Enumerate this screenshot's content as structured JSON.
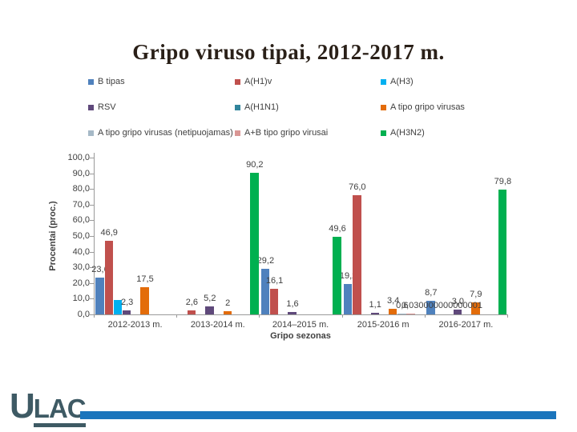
{
  "slide": {
    "title": "Gripo viruso tipai, 2012-2017 m."
  },
  "chart_data": {
    "type": "bar",
    "title": "Gripo viruso tipai, 2012-2017 m.",
    "xlabel": "Gripo sezonas",
    "ylabel": "Procentai (proc.)",
    "ylim": [
      0,
      100
    ],
    "ytick_step": 10,
    "yticks": [
      "0,0",
      "10,0",
      "20,0",
      "30,0",
      "40,0",
      "50,0",
      "60,0",
      "70,0",
      "80,0",
      "90,0",
      "100,0"
    ],
    "grid": false,
    "legend_position": "top",
    "categories": [
      "2012-2013 m.",
      "2013-2014 m.",
      "2014–2015 m.",
      "2015-2016 m",
      "2016-2017 m."
    ],
    "series": [
      {
        "name": "B tipas",
        "color": "#4F81BD",
        "values": [
          23.6,
          0,
          29.2,
          19.2,
          8.7
        ],
        "labels": [
          "23,6",
          null,
          "29,2",
          "19,2",
          "8,7"
        ]
      },
      {
        "name": "A(H1)v",
        "color": "#C0504D",
        "values": [
          46.9,
          2.6,
          16.1,
          76.0,
          0
        ],
        "labels": [
          "46,9",
          "2,6",
          "16,1",
          "76,0",
          null
        ]
      },
      {
        "name": "A(H3)",
        "color": "#00B0F0",
        "values": [
          9.2,
          0,
          0,
          0,
          0
        ],
        "labels": [
          null,
          null,
          null,
          null,
          null
        ]
      },
      {
        "name": "RSV",
        "color": "#5F497B",
        "values": [
          2.3,
          5.2,
          1.6,
          1.1,
          3.0
        ],
        "labels": [
          "2,3",
          "5,2",
          "1,6",
          "1,1",
          "3,0"
        ]
      },
      {
        "name": "A(H1N1)",
        "color": "#31859C",
        "values": [
          0,
          0,
          0,
          0,
          0
        ],
        "labels": [
          null,
          null,
          null,
          null,
          null
        ]
      },
      {
        "name": "A tipo gripo virusas",
        "color": "#E36C0A",
        "values": [
          17.5,
          2,
          0,
          3.4,
          7.9
        ],
        "labels": [
          "17,5",
          "2",
          null,
          "3,4",
          "7,9"
        ]
      },
      {
        "name": "A tipo gripo virusas (netipuojamas)",
        "color": "#A6B9C7",
        "values": [
          0,
          0,
          0,
          0.6,
          0
        ],
        "labels": [
          null,
          null,
          null,
          "0,6",
          null
        ]
      },
      {
        "name": "A+B tipo gripo virusai",
        "color": "#D99694",
        "values": [
          0,
          0,
          0,
          0.03,
          0
        ],
        "labels": [
          null,
          null,
          null,
          "0,030000000000001",
          null
        ]
      },
      {
        "name": "A(H3N2)",
        "color": "#00B050",
        "values": [
          0,
          90.2,
          49.6,
          0,
          79.8
        ],
        "labels": [
          null,
          "90,2",
          "49,6",
          null,
          "79,8"
        ]
      }
    ]
  },
  "logo": {
    "text_u": "U",
    "text_lac": "LAC",
    "letter_color": "#3E5A64",
    "bar_color": "#1B75BC"
  }
}
